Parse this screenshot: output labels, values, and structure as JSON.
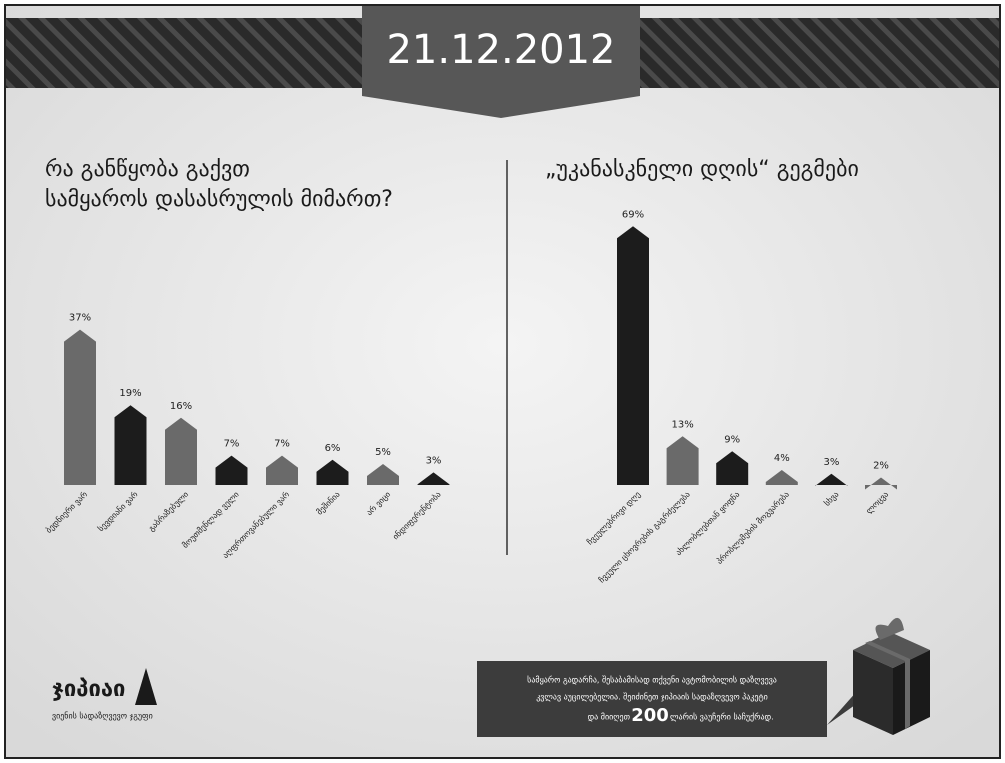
{
  "header": {
    "date": "21.12.2012"
  },
  "chart_data": [
    {
      "type": "bar",
      "title": [
        "რა განწყობა გაქვთ",
        "სამყაროს დასასრულის მიმართ?"
      ],
      "categories": [
        "ბედნიერი ვარ",
        "სევდიანი ვარ",
        "გაბრაზებული",
        "მოუთმენლად ველი",
        "აღფრთოვანებული ვარ",
        "მეშინია",
        "არ ვიცი",
        "ინდიფერენტობა"
      ],
      "values": [
        37,
        19,
        16,
        7,
        7,
        6,
        5,
        3
      ],
      "value_labels": [
        "37%",
        "19%",
        "16%",
        "7%",
        "7%",
        "6%",
        "5%",
        "3%"
      ],
      "colors": [
        "#6a6a6a",
        "#1c1c1c",
        "#6a6a6a",
        "#1c1c1c",
        "#6a6a6a",
        "#1c1c1c",
        "#6a6a6a",
        "#1c1c1c"
      ]
    },
    {
      "type": "bar",
      "title": [
        "„უკანასკნელი დღის“ გეგმები"
      ],
      "categories": [
        "ჩვეულებრივი დღე",
        "ჩვეული ცხოვრების გაგრძელება",
        "ახლობლებთან ყოფნა",
        "პრობლემების მოგვარება",
        "სხვა",
        "ლოცვა"
      ],
      "values": [
        69,
        13,
        9,
        4,
        3,
        2
      ],
      "value_labels": [
        "69%",
        "13%",
        "9%",
        "4%",
        "3%",
        "2%"
      ],
      "colors": [
        "#1c1c1c",
        "#6a6a6a",
        "#1c1c1c",
        "#6a6a6a",
        "#1c1c1c",
        "#6a6a6a"
      ]
    }
  ],
  "footer": {
    "brand": "ჯიპიაი",
    "brand_sub": "ვიენის სადაზღვევო ჯგუფი",
    "promo_line1": "სამყარო გადარჩა, შესაბამისად თქვენი ავტომობილის დაზღვევა",
    "promo_line2": "კვლავ აუცილებელია. შეიძინეთ ჯიპიაის სადაზღვევო პაკეტი",
    "promo_pre": "და მიიღეთ",
    "promo_amount": "200",
    "promo_post": "ლარის ვაუჩერი საჩუქრად."
  }
}
